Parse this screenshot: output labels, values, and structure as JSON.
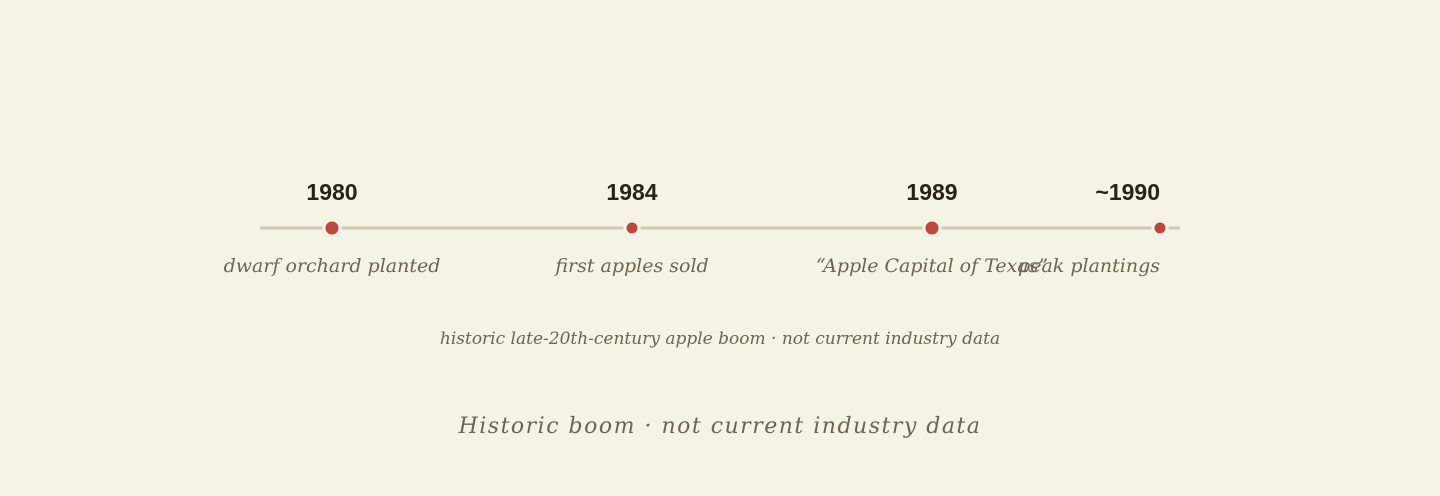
{
  "timeline": {
    "events": [
      {
        "year": "1980",
        "label": "dwarf orchard planted"
      },
      {
        "year": "1984",
        "label": "first apples sold"
      },
      {
        "year": "1989",
        "label": "“Apple Capital of Texas”"
      },
      {
        "year": "~1990",
        "label": "peak plantings"
      }
    ],
    "note": "historic late-20th-century apple boom · not current industry data"
  },
  "footer": "Historic boom · not current industry data"
}
